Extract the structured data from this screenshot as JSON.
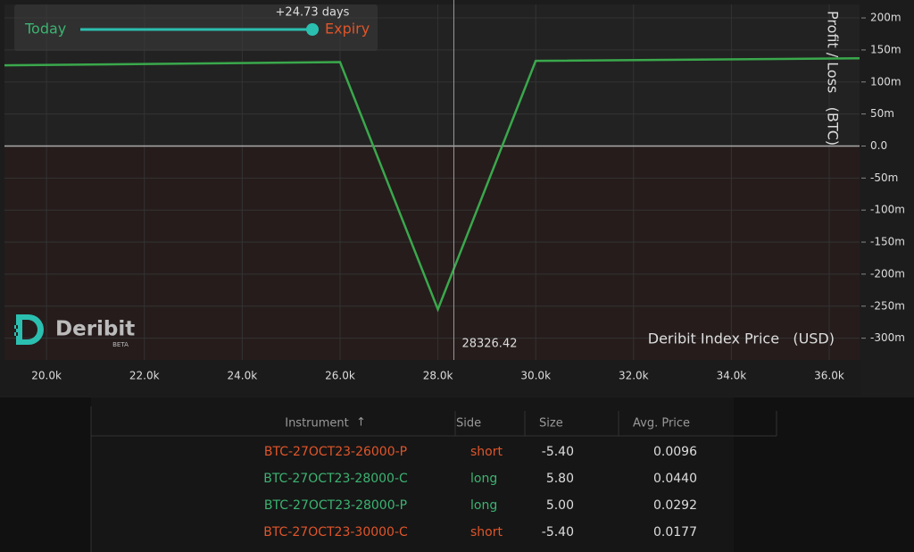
{
  "chart_data": {
    "type": "line",
    "x_label": "Deribit Index Price   (USD)",
    "y_label": "Profit / Loss   (BTC)",
    "x": [
      19140,
      26000,
      28000,
      30000,
      36620
    ],
    "values": [
      126,
      131,
      -255,
      133,
      137
    ],
    "color": "#3aa84c",
    "xlim": [
      19140,
      36620
    ],
    "ylim": [
      -334,
      221
    ],
    "xticks": [
      {
        "value": 20000,
        "label": "20.0k"
      },
      {
        "value": 22000,
        "label": "22.0k"
      },
      {
        "value": 24000,
        "label": "24.0k"
      },
      {
        "value": 26000,
        "label": "26.0k"
      },
      {
        "value": 28000,
        "label": "28.0k"
      },
      {
        "value": 30000,
        "label": "30.0k"
      },
      {
        "value": 32000,
        "label": "32.0k"
      },
      {
        "value": 34000,
        "label": "34.0k"
      },
      {
        "value": 36000,
        "label": "36.0k"
      }
    ],
    "yticks": [
      {
        "value": 200,
        "label": "200m"
      },
      {
        "value": 150,
        "label": "150m"
      },
      {
        "value": 100,
        "label": "100m"
      },
      {
        "value": 50,
        "label": "50m"
      },
      {
        "value": 0,
        "label": "0.0"
      },
      {
        "value": -50,
        "label": "-50m"
      },
      {
        "value": -100,
        "label": "-100m"
      },
      {
        "value": -150,
        "label": "-150m"
      },
      {
        "value": -200,
        "label": "-200m"
      },
      {
        "value": -250,
        "label": "-250m"
      },
      {
        "value": -300,
        "label": "-300m"
      }
    ],
    "grid": true,
    "crosshair_x": 28326.42
  },
  "slider": {
    "label": "+24.73 days",
    "left": "Today",
    "right": "Expiry"
  },
  "logo": {
    "name": "Deribit",
    "badge": "BETA"
  },
  "table": {
    "columns": [
      "Instrument",
      "Side",
      "Size",
      "Avg. Price"
    ],
    "sort_icon": "↑",
    "rows": [
      [
        "BTC-27OCT23-26000-P",
        "short",
        "-5.40",
        "0.0096"
      ],
      [
        "BTC-27OCT23-28000-C",
        "long",
        "5.80",
        "0.0440"
      ],
      [
        "BTC-27OCT23-28000-P",
        "long",
        "5.00",
        "0.0292"
      ],
      [
        "BTC-27OCT23-30000-C",
        "short",
        "-5.40",
        "0.0177"
      ]
    ]
  }
}
